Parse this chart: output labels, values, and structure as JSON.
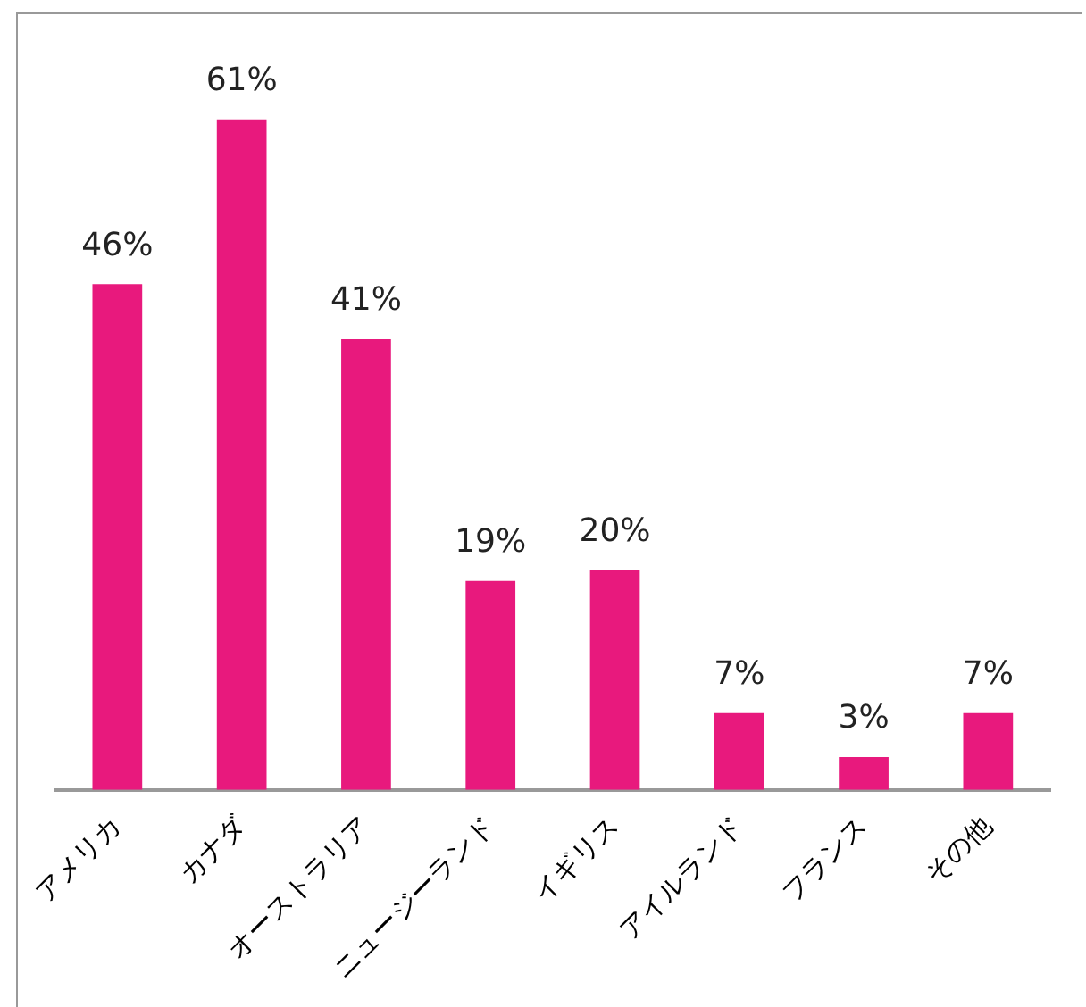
{
  "chart_data": {
    "type": "bar",
    "categories": [
      "アメリカ",
      "カナダ",
      "オーストラリア",
      "ニュージーランド",
      "イギリス",
      "アイルランド",
      "フランス",
      "その他"
    ],
    "values": [
      46,
      61,
      41,
      19,
      20,
      7,
      3,
      7
    ],
    "value_labels": [
      "46%",
      "61%",
      "41%",
      "19%",
      "20%",
      "7%",
      "3%",
      "7%"
    ],
    "color": "#e8197d",
    "grid": false,
    "legend": false
  }
}
